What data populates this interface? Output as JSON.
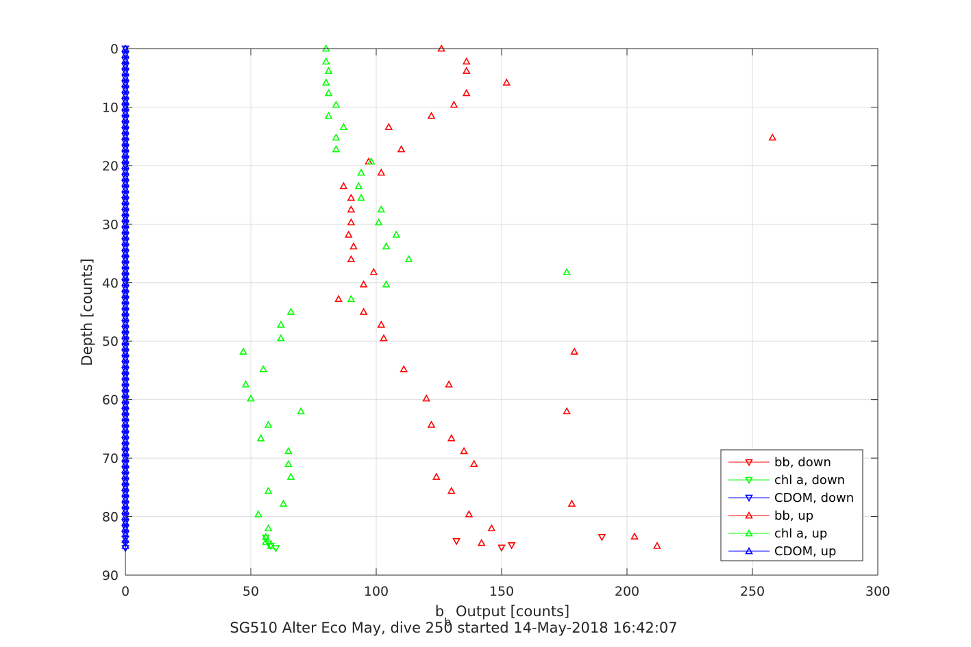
{
  "chart_data": {
    "type": "scatter",
    "xlabel_main": "b",
    "xlabel_sub": "b",
    "xlabel_rest": " Output [counts]",
    "ylabel": "Depth [counts]",
    "caption": "SG510 Alter Eco May, dive 250 started 14-May-2018 16:42:07",
    "xlim": [
      0,
      300
    ],
    "ylim": [
      0,
      90
    ],
    "y_reversed": true,
    "grid": true,
    "legend_position": "bottom-right",
    "x_ticks": [
      "0",
      "50",
      "100",
      "150",
      "200",
      "250",
      "300"
    ],
    "y_ticks": [
      "0",
      "10",
      "20",
      "30",
      "40",
      "50",
      "60",
      "70",
      "80",
      "90"
    ],
    "colors": {
      "bb": "#ff0000",
      "chl": "#00ff00",
      "cdom": "#0000ff"
    },
    "series": [
      {
        "name": "bb, down",
        "color": "#ff0000",
        "marker": "triangle-down",
        "points": [
          [
            132,
            84.2
          ],
          [
            150,
            85.3
          ],
          [
            154,
            84.9
          ],
          [
            190,
            83.5
          ]
        ]
      },
      {
        "name": "chl a, down",
        "color": "#00ff00",
        "marker": "triangle-down",
        "points": [
          [
            56,
            83.6
          ],
          [
            57,
            84.6
          ],
          [
            58,
            85.0
          ],
          [
            60,
            85.4
          ]
        ]
      },
      {
        "name": "CDOM, down",
        "color": "#0000ff",
        "marker": "triangle-down",
        "points": [
          [
            0,
            85.4
          ],
          [
            0,
            84.6
          ],
          [
            0,
            83.8
          ],
          [
            0,
            83.0
          ],
          [
            0,
            82.0
          ],
          [
            0,
            81.0
          ],
          [
            0,
            80.0
          ],
          [
            0,
            79.0
          ],
          [
            0,
            78.0
          ],
          [
            0,
            77.0
          ],
          [
            0,
            76.0
          ],
          [
            0,
            75.0
          ],
          [
            0,
            74.0
          ],
          [
            0,
            73.0
          ],
          [
            0,
            72.0
          ],
          [
            0,
            71.0
          ],
          [
            0,
            70.0
          ],
          [
            0,
            69.0
          ],
          [
            0,
            68.0
          ],
          [
            0,
            67.0
          ],
          [
            0,
            66.0
          ],
          [
            0,
            65.0
          ],
          [
            0,
            64.0
          ],
          [
            0,
            63.0
          ],
          [
            0,
            62.0
          ],
          [
            0,
            61.0
          ],
          [
            0,
            60.0
          ],
          [
            0,
            59.0
          ],
          [
            0,
            58.0
          ],
          [
            0,
            57.0
          ],
          [
            0,
            56.0
          ],
          [
            0,
            55.0
          ],
          [
            0,
            54.0
          ],
          [
            0,
            53.0
          ],
          [
            0,
            52.0
          ],
          [
            0,
            51.0
          ],
          [
            0,
            50.0
          ],
          [
            0,
            49.0
          ],
          [
            0,
            48.0
          ],
          [
            0,
            47.0
          ],
          [
            0,
            46.0
          ],
          [
            0,
            45.0
          ],
          [
            0,
            44.0
          ],
          [
            0,
            43.0
          ],
          [
            0,
            42.0
          ],
          [
            0,
            41.0
          ],
          [
            0,
            40.0
          ],
          [
            0,
            39.0
          ],
          [
            0,
            38.0
          ],
          [
            0,
            37.0
          ],
          [
            0,
            36.0
          ],
          [
            0,
            35.0
          ],
          [
            0,
            34.0
          ],
          [
            0,
            33.0
          ],
          [
            0,
            32.0
          ],
          [
            0,
            31.0
          ],
          [
            0,
            30.0
          ],
          [
            0,
            29.0
          ],
          [
            0,
            28.0
          ],
          [
            0,
            27.0
          ],
          [
            0,
            26.0
          ],
          [
            0,
            25.0
          ],
          [
            0,
            24.0
          ],
          [
            0,
            23.0
          ],
          [
            0,
            22.0
          ],
          [
            0,
            21.0
          ],
          [
            0,
            20.0
          ],
          [
            0,
            19.0
          ],
          [
            0,
            18.0
          ],
          [
            0,
            17.0
          ],
          [
            0,
            16.0
          ],
          [
            0,
            15.0
          ],
          [
            0,
            14.0
          ],
          [
            0,
            13.0
          ],
          [
            0,
            12.0
          ],
          [
            0,
            11.0
          ],
          [
            0,
            10.0
          ],
          [
            0,
            9.0
          ],
          [
            0,
            8.0
          ],
          [
            0,
            7.0
          ],
          [
            0,
            6.0
          ],
          [
            0,
            5.0
          ],
          [
            0,
            4.0
          ],
          [
            0,
            3.0
          ],
          [
            0,
            2.0
          ],
          [
            0,
            1.0
          ],
          [
            0,
            0.0
          ]
        ]
      },
      {
        "name": "bb, up",
        "color": "#ff0000",
        "marker": "triangle-up",
        "points": [
          [
            126,
            0.0
          ],
          [
            136,
            2.2
          ],
          [
            136,
            3.8
          ],
          [
            152,
            5.8
          ],
          [
            136,
            7.6
          ],
          [
            131,
            9.6
          ],
          [
            122,
            11.5
          ],
          [
            105,
            13.4
          ],
          [
            258,
            15.2
          ],
          [
            110,
            17.2
          ],
          [
            97,
            19.3
          ],
          [
            102,
            21.2
          ],
          [
            87,
            23.5
          ],
          [
            90,
            25.5
          ],
          [
            90,
            27.5
          ],
          [
            90,
            29.7
          ],
          [
            89,
            31.8
          ],
          [
            91,
            33.8
          ],
          [
            90,
            36.0
          ],
          [
            99,
            38.2
          ],
          [
            95,
            40.3
          ],
          [
            85,
            42.8
          ],
          [
            95,
            45.0
          ],
          [
            102,
            47.2
          ],
          [
            103,
            49.5
          ],
          [
            179,
            51.8
          ],
          [
            111,
            54.8
          ],
          [
            129,
            57.4
          ],
          [
            120,
            59.8
          ],
          [
            176,
            62.0
          ],
          [
            122,
            64.3
          ],
          [
            130,
            66.6
          ],
          [
            135,
            68.8
          ],
          [
            139,
            71.0
          ],
          [
            124,
            73.2
          ],
          [
            130,
            75.6
          ],
          [
            178,
            77.8
          ],
          [
            137,
            79.6
          ],
          [
            146,
            82.0
          ],
          [
            203,
            83.4
          ],
          [
            142,
            84.5
          ],
          [
            212,
            85.0
          ]
        ]
      },
      {
        "name": "chl a, up",
        "color": "#00ff00",
        "marker": "triangle-up",
        "points": [
          [
            80,
            0.0
          ],
          [
            80,
            2.2
          ],
          [
            81,
            3.8
          ],
          [
            80,
            5.8
          ],
          [
            81,
            7.6
          ],
          [
            84,
            9.6
          ],
          [
            81,
            11.5
          ],
          [
            87,
            13.4
          ],
          [
            84,
            15.2
          ],
          [
            84,
            17.2
          ],
          [
            98,
            19.3
          ],
          [
            94,
            21.2
          ],
          [
            93,
            23.5
          ],
          [
            94,
            25.5
          ],
          [
            102,
            27.5
          ],
          [
            101,
            29.7
          ],
          [
            108,
            31.8
          ],
          [
            104,
            33.8
          ],
          [
            113,
            36.0
          ],
          [
            176,
            38.2
          ],
          [
            104,
            40.3
          ],
          [
            90,
            42.8
          ],
          [
            66,
            45.0
          ],
          [
            62,
            47.2
          ],
          [
            62,
            49.5
          ],
          [
            47,
            51.8
          ],
          [
            55,
            54.8
          ],
          [
            48,
            57.4
          ],
          [
            50,
            59.8
          ],
          [
            70,
            62.0
          ],
          [
            57,
            64.3
          ],
          [
            54,
            66.6
          ],
          [
            65,
            68.8
          ],
          [
            65,
            71.0
          ],
          [
            66,
            73.2
          ],
          [
            57,
            75.6
          ],
          [
            63,
            77.8
          ],
          [
            53,
            79.6
          ],
          [
            57,
            82.0
          ],
          [
            56,
            83.5
          ],
          [
            56,
            84.3
          ],
          [
            58,
            85.0
          ]
        ]
      },
      {
        "name": "CDOM, up",
        "color": "#0000ff",
        "marker": "triangle-up",
        "points": [
          [
            0,
            0.0
          ],
          [
            0,
            1.0
          ],
          [
            0,
            2.0
          ],
          [
            0,
            3.0
          ],
          [
            0,
            4.0
          ],
          [
            0,
            5.0
          ],
          [
            0,
            6.0
          ],
          [
            0,
            7.0
          ],
          [
            0,
            8.0
          ],
          [
            0,
            9.0
          ],
          [
            0,
            10.0
          ],
          [
            0,
            11.0
          ],
          [
            0,
            12.0
          ],
          [
            0,
            13.0
          ],
          [
            0,
            14.0
          ],
          [
            0,
            15.0
          ],
          [
            0,
            16.0
          ],
          [
            0,
            17.0
          ],
          [
            0,
            18.0
          ],
          [
            0,
            19.0
          ],
          [
            0,
            20.0
          ],
          [
            0,
            21.0
          ],
          [
            0,
            22.0
          ],
          [
            0,
            23.0
          ],
          [
            0,
            24.0
          ],
          [
            0,
            25.0
          ],
          [
            0,
            26.0
          ],
          [
            0,
            27.0
          ],
          [
            0,
            28.0
          ],
          [
            0,
            29.0
          ],
          [
            0,
            30.0
          ],
          [
            0,
            31.0
          ],
          [
            0,
            32.0
          ],
          [
            0,
            33.0
          ],
          [
            0,
            34.0
          ],
          [
            0,
            35.0
          ],
          [
            0,
            36.0
          ],
          [
            0,
            37.0
          ],
          [
            0,
            38.0
          ],
          [
            0,
            39.0
          ],
          [
            0,
            40.0
          ],
          [
            0,
            41.0
          ],
          [
            0,
            42.0
          ],
          [
            0,
            43.0
          ],
          [
            0,
            44.0
          ],
          [
            0,
            45.0
          ],
          [
            0,
            46.0
          ],
          [
            0,
            47.0
          ],
          [
            0,
            48.0
          ],
          [
            0,
            49.0
          ],
          [
            0,
            50.0
          ],
          [
            0,
            51.0
          ],
          [
            0,
            52.0
          ],
          [
            0,
            53.0
          ],
          [
            0,
            54.0
          ],
          [
            0,
            55.0
          ],
          [
            0,
            56.0
          ],
          [
            0,
            57.0
          ],
          [
            0,
            58.0
          ],
          [
            0,
            59.0
          ],
          [
            0,
            60.0
          ],
          [
            0,
            61.0
          ],
          [
            0,
            62.0
          ],
          [
            0,
            63.0
          ],
          [
            0,
            64.0
          ],
          [
            0,
            65.0
          ],
          [
            0,
            66.0
          ],
          [
            0,
            67.0
          ],
          [
            0,
            68.0
          ],
          [
            0,
            69.0
          ],
          [
            0,
            70.0
          ],
          [
            0,
            71.0
          ],
          [
            0,
            72.0
          ],
          [
            0,
            73.0
          ],
          [
            0,
            74.0
          ],
          [
            0,
            75.0
          ],
          [
            0,
            76.0
          ],
          [
            0,
            77.0
          ],
          [
            0,
            78.0
          ],
          [
            0,
            79.0
          ],
          [
            0,
            80.0
          ],
          [
            0,
            81.0
          ],
          [
            0,
            82.0
          ],
          [
            0,
            83.0
          ],
          [
            0,
            84.0
          ],
          [
            0,
            85.0
          ]
        ]
      }
    ]
  }
}
